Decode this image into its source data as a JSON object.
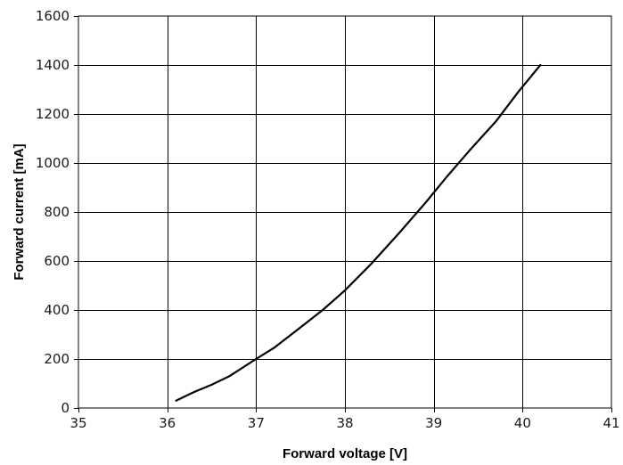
{
  "chart_data": {
    "type": "line",
    "title": "",
    "xlabel": "Forward voltage [V]",
    "ylabel": "Forward current [mA]",
    "xlim": [
      35,
      41
    ],
    "ylim": [
      0,
      1600
    ],
    "x_ticks": [
      "35",
      "36",
      "37",
      "38",
      "39",
      "40",
      "41"
    ],
    "y_ticks": [
      "0",
      "200",
      "400",
      "600",
      "800",
      "1000",
      "1200",
      "1400",
      "1600"
    ],
    "grid": true,
    "legend": "none",
    "line_color": "#000000",
    "series": [
      {
        "x": [
          36.1,
          36.3,
          36.5,
          36.7,
          37.0,
          37.2,
          37.45,
          37.75,
          38.0,
          38.3,
          38.6,
          38.9,
          39.15,
          39.4,
          39.7,
          39.95,
          40.2
        ],
        "y": [
          30,
          65,
          95,
          130,
          200,
          245,
          315,
          400,
          480,
          590,
          710,
          835,
          945,
          1050,
          1170,
          1290,
          1400
        ]
      }
    ]
  }
}
